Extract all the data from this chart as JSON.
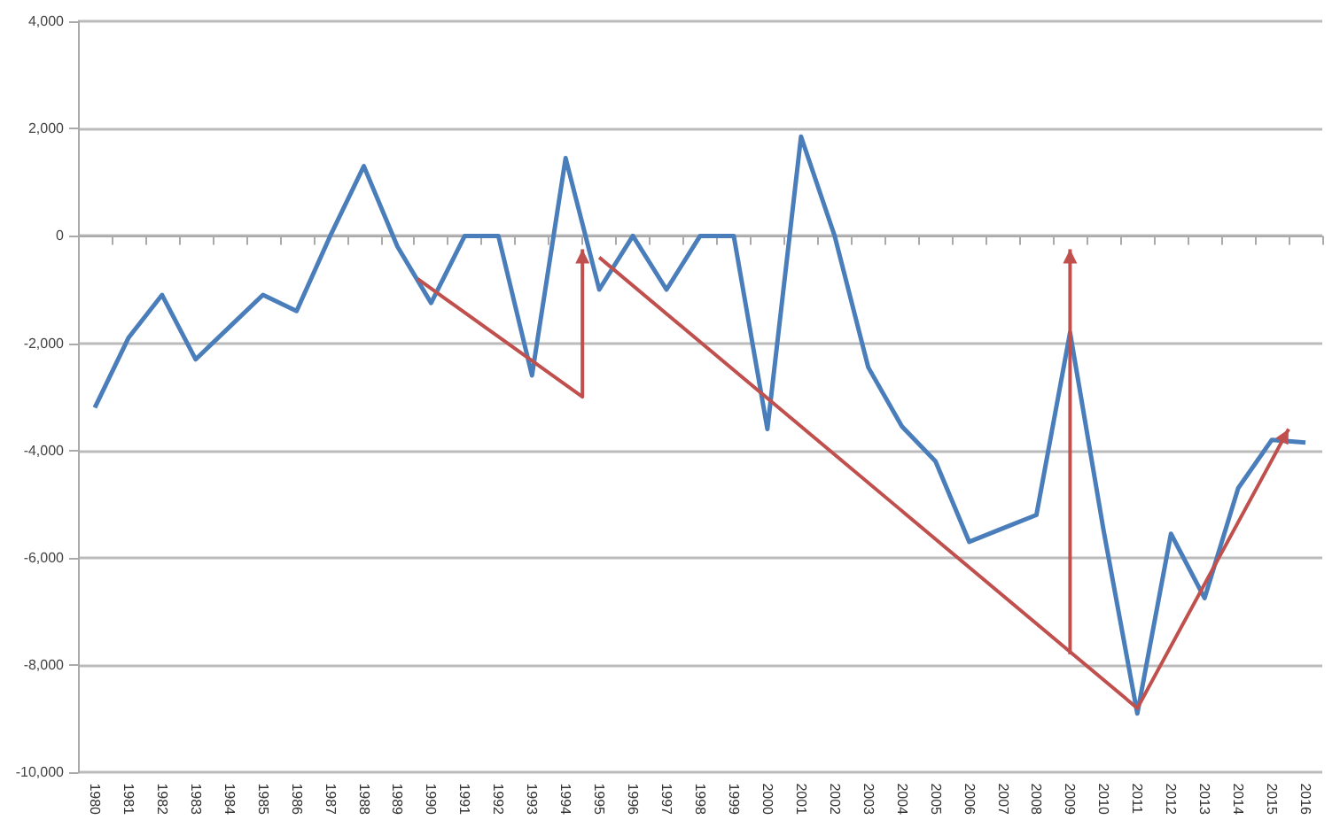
{
  "chart_data": {
    "type": "line",
    "categories": [
      "1980",
      "1981",
      "1982",
      "1983",
      "1984",
      "1985",
      "1986",
      "1987",
      "1988",
      "1989",
      "1990",
      "1991",
      "1992",
      "1993",
      "1994",
      "1995",
      "1996",
      "1997",
      "1998",
      "1999",
      "2000",
      "2001",
      "2002",
      "2003",
      "2004",
      "2005",
      "2006",
      "2007",
      "2008",
      "2009",
      "2010",
      "2011",
      "2012",
      "2013",
      "2014",
      "2015",
      "2016"
    ],
    "series": [
      {
        "color": "#4a7ebb",
        "values": [
          -3200,
          -1900,
          -1100,
          -2300,
          -1700,
          -1100,
          -1400,
          0,
          1300,
          -200,
          -1250,
          0,
          0,
          -2600,
          1450,
          -1000,
          0,
          -1000,
          0,
          0,
          -3600,
          1850,
          0,
          -2450,
          -3550,
          -4200,
          -5700,
          -5450,
          -5200,
          -1800,
          -5500,
          -8900,
          -5550,
          -6750,
          -4700,
          -3800,
          -3850
        ]
      }
    ],
    "ylim": [
      -10000,
      4000
    ],
    "yticks": [
      {
        "value": -10000,
        "label": "-10,000"
      },
      {
        "value": -8000,
        "label": "-8,000"
      },
      {
        "value": -6000,
        "label": "-6,000"
      },
      {
        "value": -4000,
        "label": "-4,000"
      },
      {
        "value": -2000,
        "label": "-2,000"
      },
      {
        "value": 0,
        "label": "0"
      },
      {
        "value": 2000,
        "label": "2,000"
      },
      {
        "value": 4000,
        "label": "4,000"
      }
    ],
    "grid": "y",
    "marker": "none",
    "line_style": "solid"
  }
}
